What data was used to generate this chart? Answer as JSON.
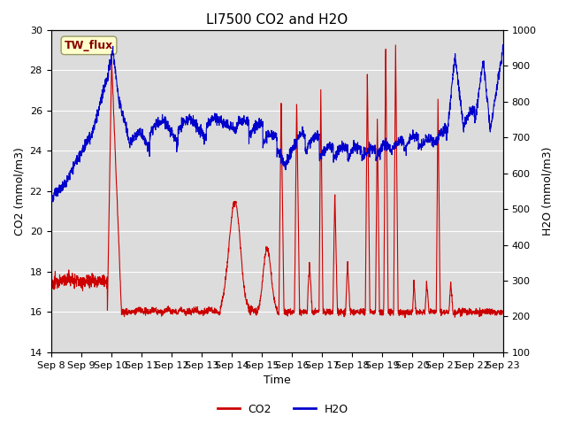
{
  "title": "LI7500 CO2 and H2O",
  "xlabel": "Time",
  "ylabel_left": "CO2 (mmol/m3)",
  "ylabel_right": "H2O (mmol/m3)",
  "co2_ylim": [
    14,
    30
  ],
  "h2o_ylim": [
    100,
    1000
  ],
  "co2_yticks": [
    14,
    16,
    18,
    20,
    22,
    24,
    26,
    28,
    30
  ],
  "h2o_yticks": [
    100,
    200,
    300,
    400,
    500,
    600,
    700,
    800,
    900,
    1000
  ],
  "xtick_labels": [
    "Sep 8",
    "Sep 9",
    "Sep 10",
    "Sep 11",
    "Sep 12",
    "Sep 13",
    "Sep 14",
    "Sep 15",
    "Sep 16",
    "Sep 17",
    "Sep 18",
    "Sep 19",
    "Sep 20",
    "Sep 21",
    "Sep 22",
    "Sep 23"
  ],
  "co2_color": "#CC0000",
  "h2o_color": "#0000CC",
  "bg_color": "#DCDCDC",
  "legend_label_co2": "CO2",
  "legend_label_h2o": "H2O",
  "site_label": "TW_flux",
  "site_label_color": "#880000",
  "site_label_bg": "#FFFFCC",
  "title_fontsize": 11,
  "axis_fontsize": 9,
  "tick_fontsize": 8
}
